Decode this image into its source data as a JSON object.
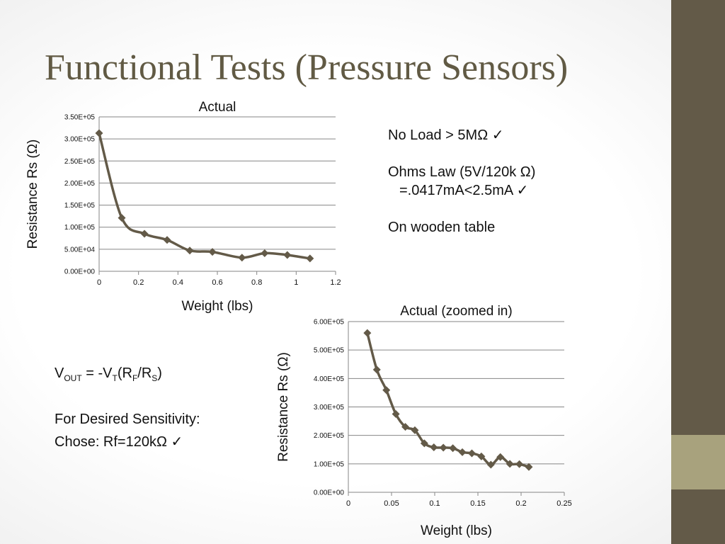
{
  "title": "Functional Tests (Pressure Sensors)",
  "notes": {
    "line1": "No Load > 5MΩ",
    "line2a": "Ohms Law  (5V/120k Ω)",
    "line2b": "=.0417mA<2.5mA",
    "line3": "On wooden table",
    "check": "✓"
  },
  "formula": {
    "v": "V",
    "out": "OUT",
    "eq": " = -V",
    "t": "T",
    "open": "(R",
    "f": "F",
    "slash": "/R",
    "s": "S",
    "close": ")",
    "sensitivity": "For Desired Sensitivity:",
    "chose": "Chose: Rf=120kΩ",
    "check": "✓"
  },
  "colors": {
    "line": "#635a48",
    "marker": "#635a48",
    "grid": "#868686",
    "sidebar": "#635a48",
    "accent": "#a8a27d"
  },
  "chart_data": [
    {
      "type": "line",
      "title": "Actual",
      "xlabel": "Weight (lbs)",
      "ylabel": "Resistance Rs (Ω)",
      "xlim": [
        0,
        1.2
      ],
      "ylim": [
        0,
        350000
      ],
      "xticks": [
        0,
        0.2,
        0.4,
        0.6,
        0.8,
        1,
        1.2
      ],
      "xtick_labels": [
        "0",
        "0.2",
        "0.4",
        "0.6",
        "0.8",
        "1",
        "1.2"
      ],
      "yticks": [
        0,
        50000,
        100000,
        150000,
        200000,
        250000,
        300000,
        350000
      ],
      "ytick_labels": [
        "0.00E+00",
        "5.00E+04",
        "1.00E+05",
        "1.50E+05",
        "2.00E+05",
        "2.50E+05",
        "3.00E+05",
        "3.50E+05"
      ],
      "grid": true,
      "legend": "none",
      "series": [
        {
          "x": [
            0,
            0.115,
            0.23,
            0.345,
            0.46,
            0.575,
            0.725,
            0.84,
            0.955,
            1.07
          ],
          "y": [
            313000,
            121000,
            85000,
            71000,
            47000,
            44000,
            31000,
            41000,
            37000,
            29000
          ]
        }
      ]
    },
    {
      "type": "line",
      "title": "Actual (zoomed in)",
      "xlabel": "Weight (lbs)",
      "ylabel": "Resistance Rs (Ω)",
      "xlim": [
        0,
        0.25
      ],
      "ylim": [
        0,
        600000
      ],
      "xticks": [
        0,
        0.05,
        0.1,
        0.15,
        0.2,
        0.25
      ],
      "xtick_labels": [
        "0",
        "0.05",
        "0.1",
        "0.15",
        "0.2",
        "0.25"
      ],
      "yticks": [
        0,
        100000,
        200000,
        300000,
        400000,
        500000,
        600000
      ],
      "ytick_labels": [
        "0.00E+00",
        "1.00E+05",
        "2.00E+05",
        "3.00E+05",
        "4.00E+05",
        "5.00E+05",
        "6.00E+05"
      ],
      "grid": true,
      "legend": "none",
      "series": [
        {
          "x": [
            0.022,
            0.033,
            0.044,
            0.055,
            0.066,
            0.077,
            0.088,
            0.099,
            0.11,
            0.121,
            0.132,
            0.143,
            0.154,
            0.165,
            0.176,
            0.187,
            0.198,
            0.209
          ],
          "y": [
            560000,
            431000,
            359000,
            275000,
            230000,
            218000,
            172000,
            158000,
            157000,
            155000,
            141000,
            137000,
            126000,
            97000,
            124000,
            100000,
            99000,
            89000
          ]
        }
      ]
    }
  ]
}
